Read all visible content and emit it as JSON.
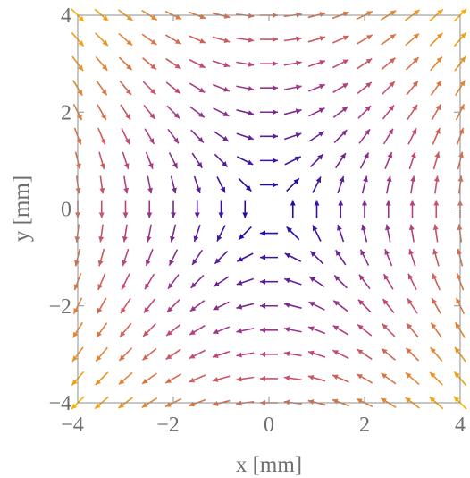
{
  "chart_data": {
    "type": "vector_field",
    "title": "",
    "xlabel": "x [mm]",
    "ylabel": "y [mm]",
    "xlim": [
      -4,
      4
    ],
    "ylim": [
      -4,
      4
    ],
    "xticks": [
      -4,
      -2,
      0,
      2,
      4
    ],
    "yticks": [
      -4,
      -2,
      0,
      2,
      4
    ],
    "xtick_labels": [
      "−4",
      "−2",
      "0",
      "2",
      "4"
    ],
    "ytick_labels": [
      "−4",
      "−2",
      "0",
      "2",
      "4"
    ],
    "field": {
      "Fx": "y",
      "Fy": "x",
      "description": "saddle field"
    },
    "grid_spacing": 0.5,
    "colormap": {
      "low_color": "#2a0aa6",
      "mid_color": "#c0457a",
      "high_color": "#f8b000",
      "by": "magnitude"
    },
    "grid": false
  }
}
